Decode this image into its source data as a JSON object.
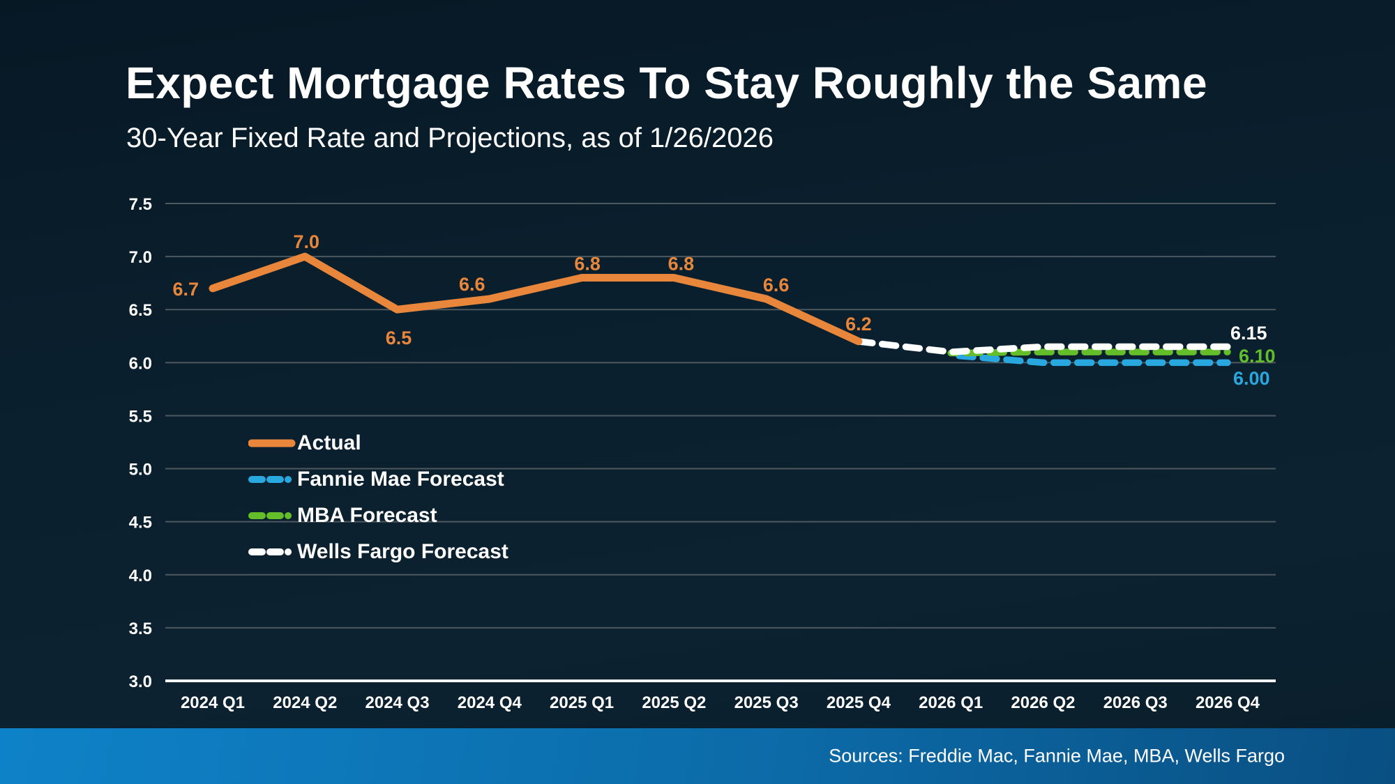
{
  "header": {
    "title": "Expect Mortgage Rates To Stay Roughly the Same",
    "subtitle": "30-Year Fixed Rate and Projections, as of 1/26/2026"
  },
  "footer": {
    "sources": "Sources: Freddie Mac, Fannie Mae, MBA, Wells Fargo"
  },
  "legend": {
    "items": [
      {
        "key": "actual",
        "label": "Actual"
      },
      {
        "key": "fannie",
        "label": "Fannie Mae Forecast"
      },
      {
        "key": "mba",
        "label": "MBA Forecast"
      },
      {
        "key": "wells",
        "label": "Wells Fargo Forecast"
      }
    ]
  },
  "colors": {
    "background_top": "#071825",
    "background_bottom": "#0C2231",
    "gridline": "#4E585F",
    "axis_line": "#F2F5F7",
    "footer_bar_left": "#0E82C8",
    "footer_bar_right": "#094F82",
    "text": "#FFFFFF"
  },
  "chart_data": {
    "type": "line",
    "title": "30-Year Fixed Rate and Projections, as of 1/26/2026",
    "xlabel": "",
    "ylabel": "",
    "grid": true,
    "legend_position": "inside-left",
    "y_axis": {
      "min": 3.0,
      "max": 7.5,
      "step": 0.5
    },
    "categories": [
      "2024 Q1",
      "2024 Q2",
      "2024 Q3",
      "2024 Q4",
      "2025 Q1",
      "2025 Q2",
      "2025 Q3",
      "2025 Q4",
      "2026 Q1",
      "2026 Q2",
      "2026 Q3",
      "2026 Q4"
    ],
    "series": [
      {
        "key": "actual",
        "name": "Actual",
        "style": "solid",
        "color": "#E8873B",
        "start_index": 0,
        "values": [
          6.7,
          7.0,
          6.5,
          6.6,
          6.8,
          6.8,
          6.6,
          6.2
        ],
        "point_labels": [
          "6.7",
          "7.0",
          "6.5",
          "6.6",
          "6.8",
          "6.8",
          "6.6",
          "6.2"
        ]
      },
      {
        "key": "fannie",
        "name": "Fannie Mae Forecast",
        "style": "dashed",
        "color": "#29A8E0",
        "start_index": 8,
        "values": [
          6.07,
          6.0,
          6.0,
          6.0
        ],
        "end_label": "6.00"
      },
      {
        "key": "mba",
        "name": "MBA Forecast",
        "style": "dashed",
        "color": "#63BE2A",
        "start_index": 8,
        "values": [
          6.09,
          6.1,
          6.1,
          6.1
        ],
        "end_label": "6.10"
      },
      {
        "key": "wells",
        "name": "Wells Fargo Forecast",
        "style": "dashed",
        "color": "#FFFFFF",
        "start_index": 7,
        "values": [
          6.2,
          6.1,
          6.15,
          6.15,
          6.15
        ],
        "end_label": "6.15"
      }
    ]
  }
}
